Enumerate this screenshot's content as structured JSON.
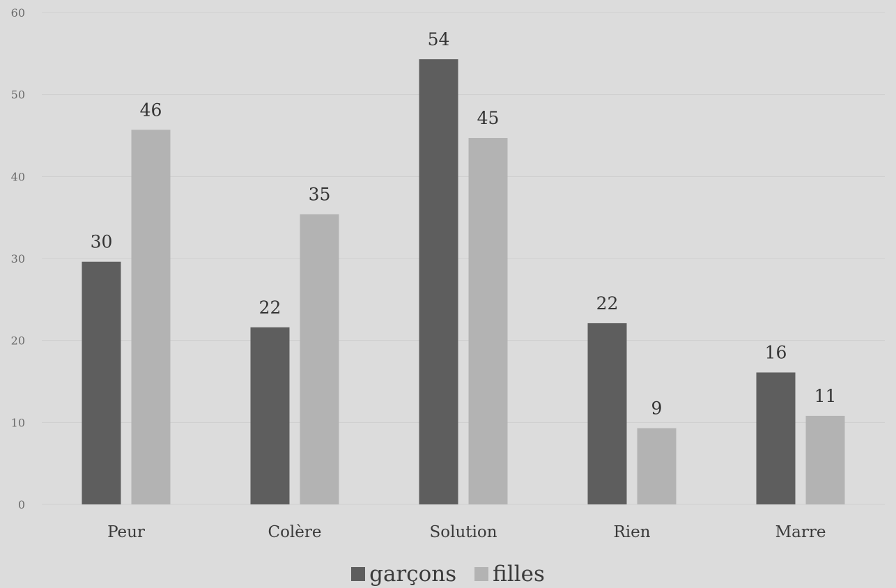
{
  "chart_data": {
    "type": "bar",
    "categories": [
      "Peur",
      "Colère",
      "Solution",
      "Rien",
      "Marre"
    ],
    "series": [
      {
        "name": "garçons",
        "values": [
          29.6,
          21.6,
          54.3,
          22.1,
          16.1
        ],
        "labels": [
          "30",
          "22",
          "54",
          "22",
          "16"
        ],
        "color": "#5e5e5e"
      },
      {
        "name": "filles",
        "values": [
          45.7,
          35.4,
          44.7,
          9.3,
          10.8
        ],
        "labels": [
          "46",
          "35",
          "45",
          "9",
          "11"
        ],
        "color": "#b3b3b3"
      }
    ],
    "yticks": [
      "0",
      "10",
      "20",
      "30",
      "40",
      "50",
      "60"
    ],
    "ylim": [
      0,
      60
    ],
    "grid": true,
    "legend_position": "bottom"
  }
}
